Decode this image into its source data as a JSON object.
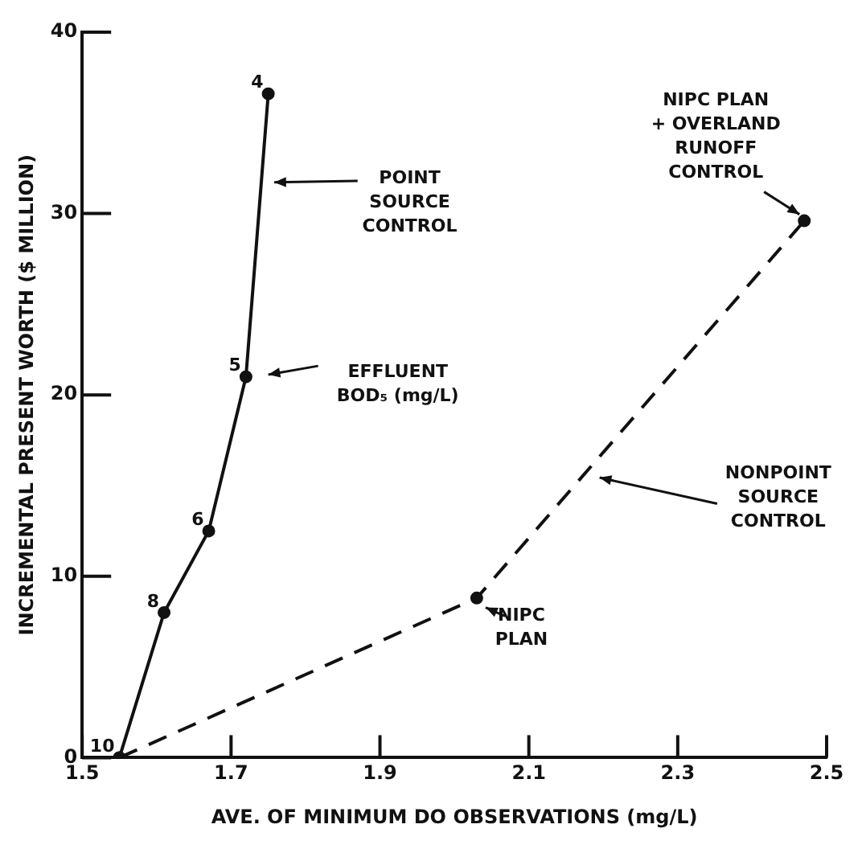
{
  "chart_data": {
    "type": "line",
    "xlabel": "AVE. OF MINIMUM DO OBSERVATIONS (mg/L)",
    "ylabel": "INCREMENTAL PRESENT WORTH ($ MILLION)",
    "series": [
      {
        "color": "#111111",
        "line_style": "solid",
        "marker": "circle",
        "x": [
          1.55,
          1.61,
          1.67,
          1.72,
          1.75
        ],
        "values": [
          0,
          8,
          12.5,
          21,
          36.6
        ]
      },
      {
        "color": "#111111",
        "line_style": "dashed",
        "marker": "circle",
        "x": [
          1.55,
          2.03,
          2.47
        ],
        "values": [
          0,
          8.8,
          29.6
        ]
      }
    ],
    "xlim": [
      1.5,
      2.5
    ],
    "xticks": [
      1.5,
      1.7,
      1.9,
      2.1,
      2.3,
      2.5
    ],
    "ylim": [
      0,
      40
    ],
    "yticks": [
      0,
      10,
      20,
      30,
      40
    ],
    "grid": false,
    "legend": false,
    "annotations": [
      {
        "text": "10",
        "x": 1.55,
        "y": 0
      },
      {
        "text": "8",
        "x": 1.61,
        "y": 8
      },
      {
        "text": "6",
        "x": 1.67,
        "y": 12.5
      },
      {
        "text": "5",
        "x": 1.72,
        "y": 21
      },
      {
        "text": "4",
        "x": 1.75,
        "y": 36.6
      },
      "POINT\nSOURCE\nCONTROL",
      "EFFLUENT\nBOD₅ (mg/L)",
      "NONPOINT\nSOURCE\nCONTROL",
      "NIPC\nPLAN",
      {
        "text": "NIPC PLAN\n+ OVERLAND\nRUNOFF\nCONTROL",
        "x": 2.47,
        "y": 29.6
      }
    ]
  }
}
